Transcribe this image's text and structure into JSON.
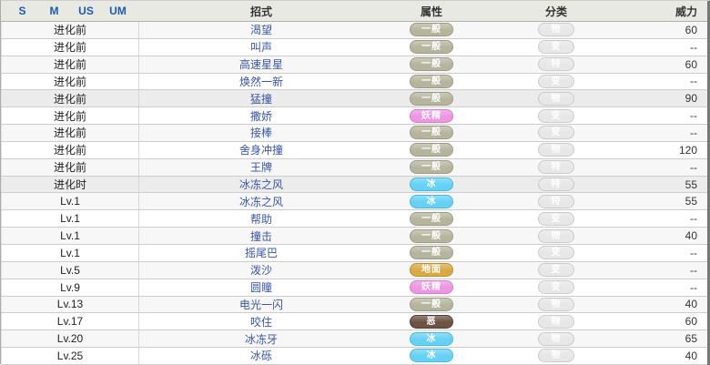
{
  "table": {
    "header": {
      "versions": [
        "S",
        "M",
        "US",
        "UM"
      ],
      "move_label": "招式",
      "type_label": "属性",
      "category_label": "分类",
      "power_label": "威力"
    },
    "rows": [
      {
        "source": "进化前",
        "move": "渴望",
        "type": "一般",
        "type_key": "normal",
        "category": "物",
        "power": "60",
        "highlight": false
      },
      {
        "source": "进化前",
        "move": "叫声",
        "type": "一般",
        "type_key": "normal",
        "category": "变",
        "power": "--",
        "highlight": false
      },
      {
        "source": "进化前",
        "move": "高速星星",
        "type": "一般",
        "type_key": "normal",
        "category": "特",
        "power": "60",
        "highlight": false
      },
      {
        "source": "进化前",
        "move": "焕然一新",
        "type": "一般",
        "type_key": "normal",
        "category": "变",
        "power": "--",
        "highlight": false
      },
      {
        "source": "进化前",
        "move": "猛撞",
        "type": "一般",
        "type_key": "normal",
        "category": "物",
        "power": "90",
        "highlight": true
      },
      {
        "source": "进化前",
        "move": "撒娇",
        "type": "妖精",
        "type_key": "fairy",
        "category": "变",
        "power": "--",
        "highlight": false
      },
      {
        "source": "进化前",
        "move": "接棒",
        "type": "一般",
        "type_key": "normal",
        "category": "变",
        "power": "--",
        "highlight": false
      },
      {
        "source": "进化前",
        "move": "舍身冲撞",
        "type": "一般",
        "type_key": "normal",
        "category": "物",
        "power": "120",
        "highlight": false
      },
      {
        "source": "进化前",
        "move": "王牌",
        "type": "一般",
        "type_key": "normal",
        "category": "特",
        "power": "--",
        "highlight": false
      },
      {
        "source": "进化时",
        "move": "冰冻之风",
        "type": "冰",
        "type_key": "ice",
        "category": "特",
        "power": "55",
        "highlight": true
      },
      {
        "source": "Lv.1",
        "move": "冰冻之风",
        "type": "冰",
        "type_key": "ice",
        "category": "特",
        "power": "55",
        "highlight": false
      },
      {
        "source": "Lv.1",
        "move": "帮助",
        "type": "一般",
        "type_key": "normal",
        "category": "变",
        "power": "--",
        "highlight": false
      },
      {
        "source": "Lv.1",
        "move": "撞击",
        "type": "一般",
        "type_key": "normal",
        "category": "物",
        "power": "40",
        "highlight": false
      },
      {
        "source": "Lv.1",
        "move": "摇尾巴",
        "type": "一般",
        "type_key": "normal",
        "category": "变",
        "power": "--",
        "highlight": false
      },
      {
        "source": "Lv.5",
        "move": "泼沙",
        "type": "地面",
        "type_key": "ground",
        "category": "变",
        "power": "--",
        "highlight": false
      },
      {
        "source": "Lv.9",
        "move": "圆瞳",
        "type": "妖精",
        "type_key": "fairy",
        "category": "变",
        "power": "--",
        "highlight": false
      },
      {
        "source": "Lv.13",
        "move": "电光一闪",
        "type": "一般",
        "type_key": "normal",
        "category": "物",
        "power": "40",
        "highlight": false
      },
      {
        "source": "Lv.17",
        "move": "咬住",
        "type": "恶",
        "type_key": "dark",
        "category": "物",
        "power": "60",
        "highlight": false
      },
      {
        "source": "Lv.20",
        "move": "冰冻牙",
        "type": "冰",
        "type_key": "ice",
        "category": "物",
        "power": "65",
        "highlight": false
      },
      {
        "source": "Lv.25",
        "move": "冰砾",
        "type": "冰",
        "type_key": "ice",
        "category": "物",
        "power": "40",
        "highlight": false
      }
    ]
  },
  "type_colors": {
    "normal": {
      "bg": "#b5b59d",
      "border": "#9d9d85"
    },
    "fairy": {
      "bg": "#ee95e3",
      "border": "#d47fca"
    },
    "ice": {
      "bg": "#65d2f5",
      "border": "#4bb8dd"
    },
    "ground": {
      "bg": "#d9a942",
      "border": "#bd9130"
    },
    "dark": {
      "bg": "#6b5243",
      "border": "#544033"
    }
  },
  "category_badge": {
    "bg": "#e7e7e7",
    "border": "#cbcbcb",
    "text": "#ffffff"
  }
}
